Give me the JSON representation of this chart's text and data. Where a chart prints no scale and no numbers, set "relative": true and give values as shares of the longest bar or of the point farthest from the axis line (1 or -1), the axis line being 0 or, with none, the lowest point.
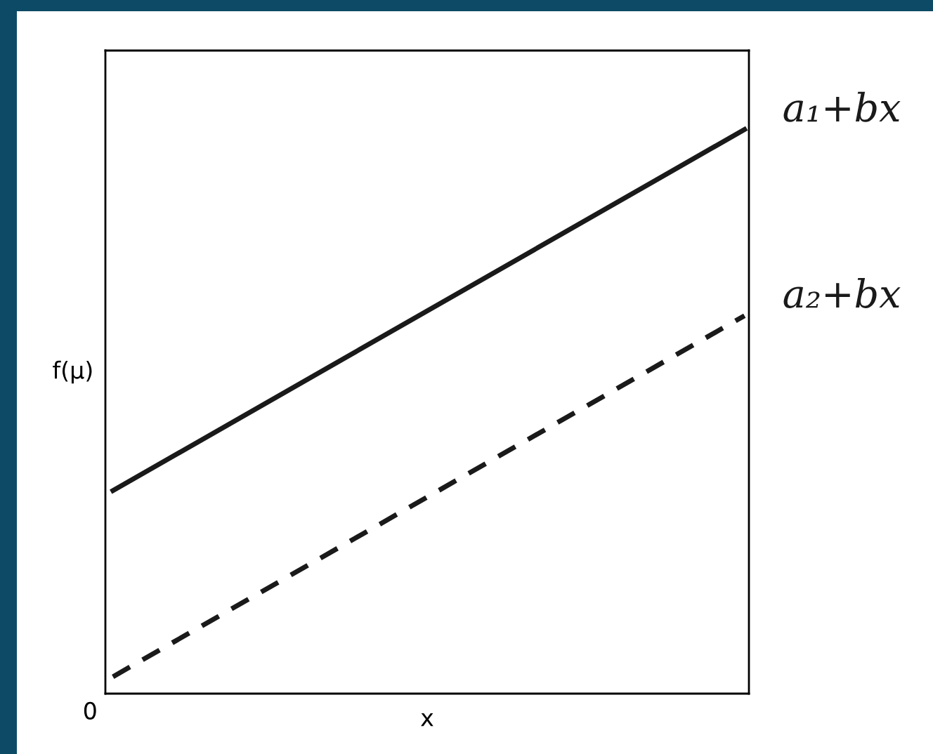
{
  "chart_data": {
    "type": "line",
    "relative": true,
    "xlabel": "x",
    "ylabel": "f(μ)",
    "categories": [
      null,
      null
    ],
    "series": [
      {
        "name": "a₁+bx",
        "color": "#1a1a1a",
        "values": [
          0.36,
          1.0
        ],
        "line_style": "solid"
      },
      {
        "name": "a₂+bx",
        "color": "#1a1a1a",
        "values": [
          0.03,
          0.67
        ],
        "line_style": "dashed"
      }
    ],
    "annotations": [
      "0"
    ],
    "legend": false,
    "grid": false,
    "marker": "none"
  }
}
